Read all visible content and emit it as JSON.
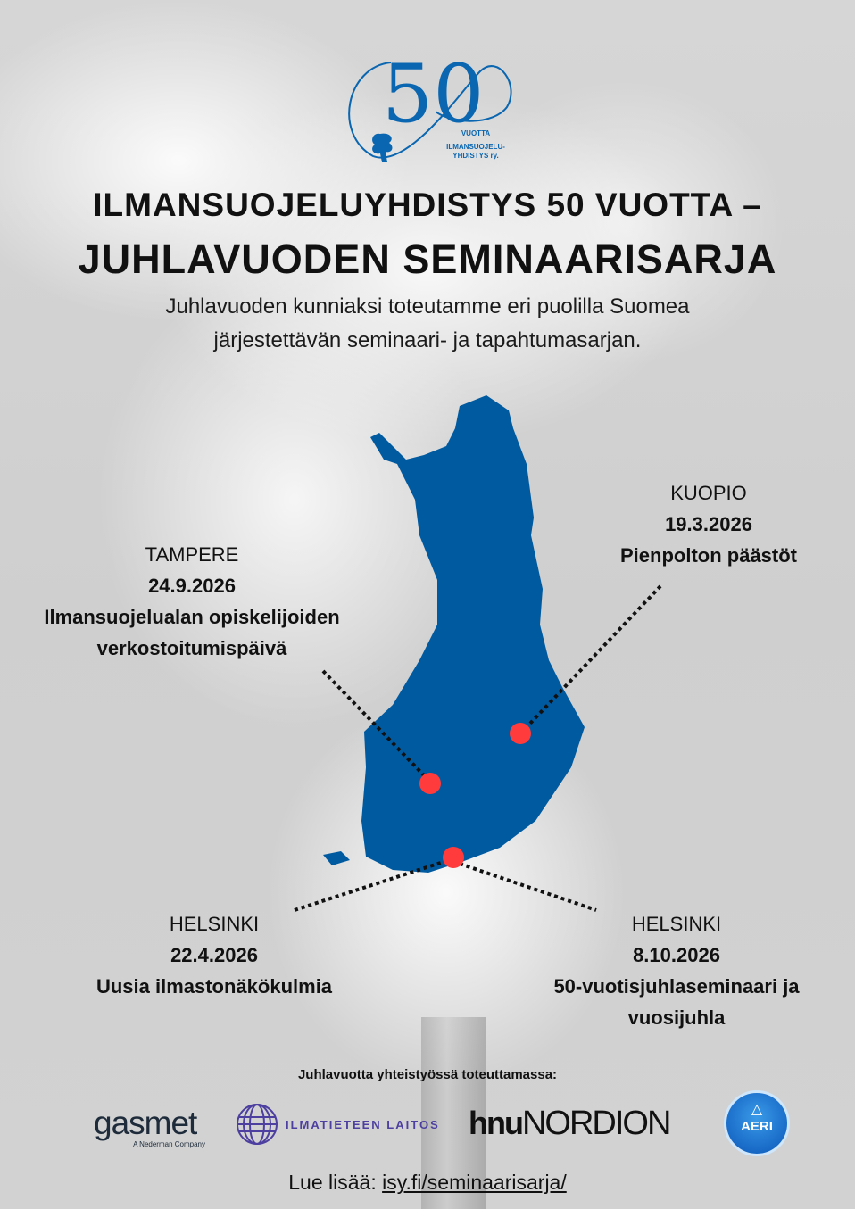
{
  "logo": {
    "number": "50",
    "line1": "VUOTTA",
    "line2": "ILMANSUOJELU-",
    "line3": "YHDISTYS ry.",
    "color": "#0a66b0"
  },
  "title": {
    "line1": "ILMANSUOJELUYHDISTYS 50 VUOTTA –",
    "line2": "JUHLAVUODEN SEMINAARISARJA"
  },
  "intro": {
    "line1": "Juhlavuoden kunniaksi toteutamme eri puolilla Suomea",
    "line2": "järjestettävän seminaari- ja tapahtumasarjan."
  },
  "map": {
    "color": "#005aa0",
    "marker_color": "#ff3b3b"
  },
  "events": [
    {
      "city": "KUOPIO",
      "date": "19.3.2026",
      "topic": "Pienpolton päästöt"
    },
    {
      "city": "TAMPERE",
      "date": "24.9.2026",
      "topic": "Ilmansuojelualan opiskelijoiden",
      "topic2": "verkostoitumispäivä"
    },
    {
      "city": "HELSINKI",
      "date": "22.4.2026",
      "topic": "Uusia ilmastonäkökulmia"
    },
    {
      "city": "HELSINKI",
      "date": "8.10.2026",
      "topic": "50-vuotisjuhlaseminaari ja",
      "topic2": "vuosijuhla"
    }
  ],
  "partners": {
    "heading": "Juhlavuotta yhteistyössä toteuttamassa:",
    "gasmet": "gasmet",
    "gasmet_sub": "A Nederman Company",
    "fmi": "ILMATIETEEN LAITOS",
    "hnu": "hnu",
    "nordion": "NORDION",
    "aeri": "AERI"
  },
  "footer": {
    "prefix": "Lue lisää: ",
    "link": "isy.fi/seminaarisarja/"
  }
}
